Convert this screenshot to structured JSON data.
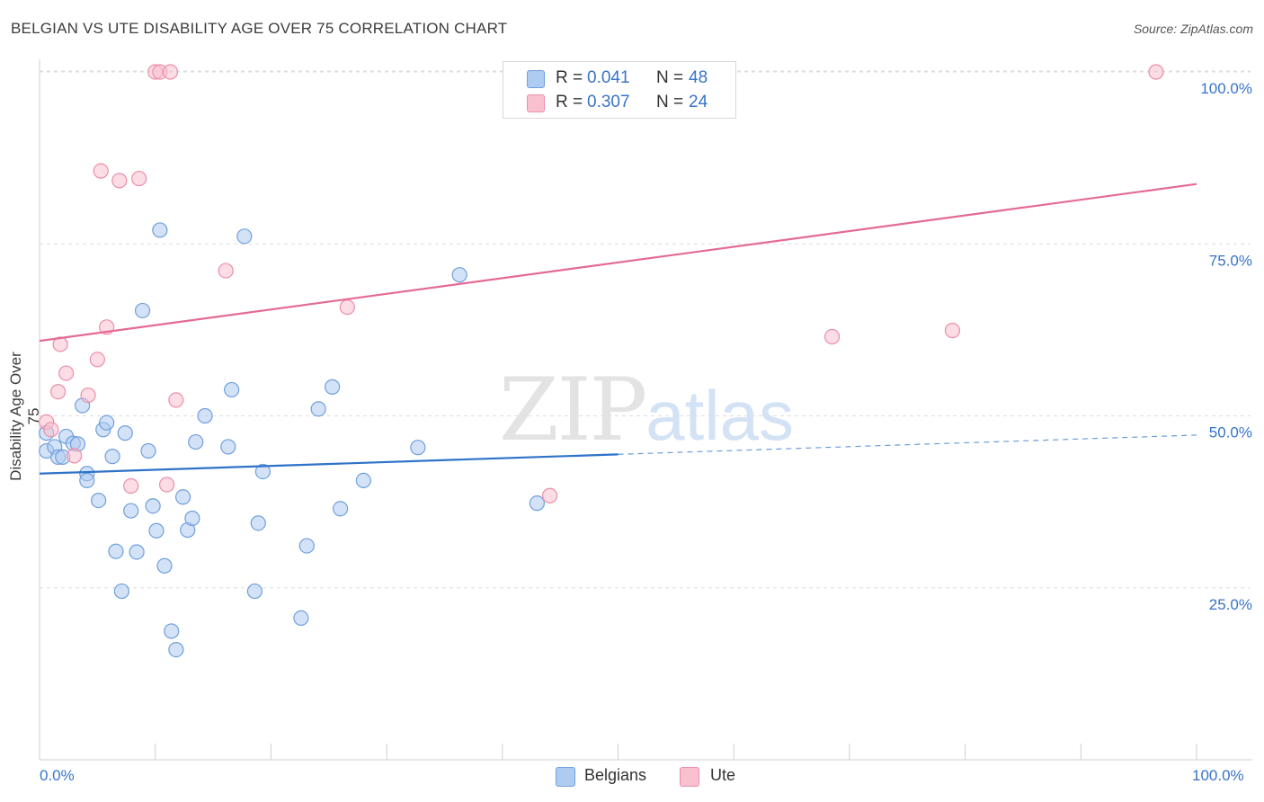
{
  "title": "BELGIAN VS UTE DISABILITY AGE OVER 75 CORRELATION CHART",
  "source": "Source: ZipAtlas.com",
  "watermark": {
    "part1": "ZIP",
    "part2": "atlas"
  },
  "legend": {
    "rows": [
      {
        "r_label": "R =",
        "r_value": "0.041",
        "n_label": "N =",
        "n_value": "48",
        "color": "#aecbf1"
      },
      {
        "r_label": "R =",
        "r_value": "0.307",
        "n_label": "N =",
        "n_value": "24",
        "color": "#f9c0d0"
      }
    ]
  },
  "bottom_legend": [
    {
      "label": "Belgians",
      "color": "#aecbf1"
    },
    {
      "label": "Ute",
      "color": "#f9c0d0"
    }
  ],
  "chart_data": {
    "type": "scatter",
    "title": "BELGIAN VS UTE DISABILITY AGE OVER 75 CORRELATION CHART",
    "xlabel": "",
    "ylabel": "Disability Age Over 75",
    "xlim": [
      0,
      100
    ],
    "ylim": [
      0,
      102
    ],
    "x_tick_labels": {
      "left": "0.0%",
      "right": "100.0%"
    },
    "y_ticks": [
      {
        "value": 100,
        "label": "100.0%"
      },
      {
        "value": 75,
        "label": "75.0%"
      },
      {
        "value": 50,
        "label": "50.0%"
      },
      {
        "value": 25,
        "label": "25.0%"
      }
    ],
    "series": [
      {
        "name": "Belgians",
        "color": "#6fa0dc",
        "fill": "#aecbf1",
        "points": [
          [
            0.6,
            44.9
          ],
          [
            1.3,
            45.5
          ],
          [
            1.6,
            44
          ],
          [
            2.0,
            44
          ],
          [
            2.3,
            47
          ],
          [
            2.9,
            46
          ],
          [
            3.3,
            45.9
          ],
          [
            3.7,
            51.5
          ],
          [
            4.1,
            41.6
          ],
          [
            4.1,
            40.6
          ],
          [
            5.1,
            37.7
          ],
          [
            5.5,
            48
          ],
          [
            5.8,
            49
          ],
          [
            6.3,
            44.1
          ],
          [
            6.6,
            30.3
          ],
          [
            7.1,
            24.5
          ],
          [
            7.4,
            47.5
          ],
          [
            7.9,
            36.2
          ],
          [
            8.4,
            30.2
          ],
          [
            8.9,
            65.3
          ],
          [
            9.4,
            44.9
          ],
          [
            9.8,
            36.9
          ],
          [
            10.1,
            33.3
          ],
          [
            10.4,
            77
          ],
          [
            10.8,
            28.2
          ],
          [
            11.4,
            18.7
          ],
          [
            11.8,
            16
          ],
          [
            12.4,
            38.2
          ],
          [
            12.8,
            33.4
          ],
          [
            13.2,
            35.1
          ],
          [
            13.5,
            46.2
          ],
          [
            14.3,
            50
          ],
          [
            16.3,
            45.5
          ],
          [
            16.6,
            53.8
          ],
          [
            17.7,
            76.1
          ],
          [
            18.6,
            24.5
          ],
          [
            18.9,
            34.4
          ],
          [
            19.3,
            41.9
          ],
          [
            22.6,
            20.6
          ],
          [
            23.1,
            31.1
          ],
          [
            24.1,
            51
          ],
          [
            25.3,
            54.2
          ],
          [
            26.0,
            36.5
          ],
          [
            28.0,
            40.6
          ],
          [
            32.7,
            45.4
          ],
          [
            36.3,
            70.5
          ],
          [
            43.0,
            37.3
          ],
          [
            0.6,
            47.5
          ]
        ]
      },
      {
        "name": "Ute",
        "color": "#ec8fa8",
        "fill": "#f9c0d0",
        "points": [
          [
            0.6,
            49.1
          ],
          [
            1.0,
            48
          ],
          [
            1.6,
            53.5
          ],
          [
            1.8,
            60.4
          ],
          [
            2.3,
            56.2
          ],
          [
            3.0,
            44.2
          ],
          [
            4.2,
            53
          ],
          [
            5.0,
            58.2
          ],
          [
            5.3,
            85.6
          ],
          [
            5.8,
            62.9
          ],
          [
            6.9,
            84.2
          ],
          [
            7.9,
            39.8
          ],
          [
            8.6,
            84.5
          ],
          [
            10.0,
            100
          ],
          [
            10.4,
            100
          ],
          [
            11.0,
            40
          ],
          [
            11.3,
            100
          ],
          [
            11.8,
            52.3
          ],
          [
            16.1,
            71.1
          ],
          [
            26.6,
            65.8
          ],
          [
            44.1,
            38.4
          ],
          [
            68.5,
            61.5
          ],
          [
            78.9,
            62.4
          ],
          [
            96.5,
            100
          ]
        ]
      }
    ],
    "trend_lines": [
      {
        "series": "Belgians",
        "from": [
          0,
          41.6
        ],
        "to": [
          50,
          44.4
        ],
        "dashed_to": [
          100,
          47.2
        ]
      },
      {
        "series": "Ute",
        "from": [
          0,
          60.9
        ],
        "to": [
          100,
          83.7
        ]
      }
    ]
  }
}
